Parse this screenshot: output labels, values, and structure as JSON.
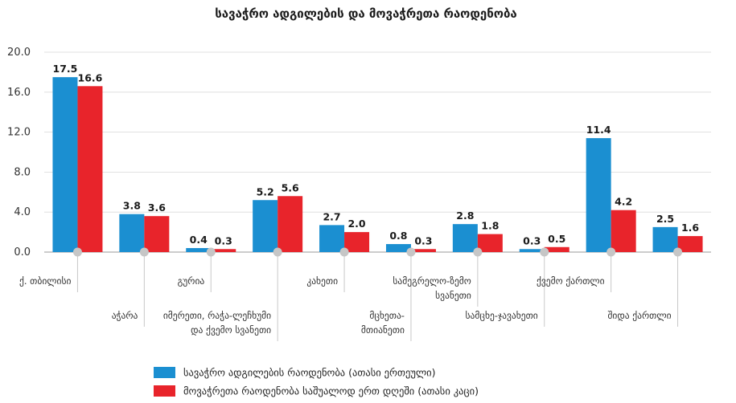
{
  "chart_data": {
    "type": "bar",
    "title": "სავაჭრო ადგილების და მოვაჭრეთა რაოდენობა",
    "ylim": [
      0,
      20
    ],
    "yticks": [
      "0.0",
      "4.0",
      "8.0",
      "12.0",
      "16.0",
      "20.0"
    ],
    "grid": true,
    "legend_position": "bottom",
    "categories": [
      [
        "ქ. თბილისი"
      ],
      [
        "აჭარა"
      ],
      [
        "გურია"
      ],
      [
        "იმერეთი, რაჭა-ლეჩხუმი",
        "და ქვემო სვანეთი"
      ],
      [
        "კახეთი"
      ],
      [
        "მცხეთა-",
        "მთიანეთი"
      ],
      [
        "სამეგრელო-ზემო",
        "სვანეთი"
      ],
      [
        "სამცხე-ჯავახეთი"
      ],
      [
        "ქვემო ქართლი"
      ],
      [
        "შიდა ქართლი"
      ]
    ],
    "series": [
      {
        "name": "სავაჭრო ადგილების რაოდენობა (ათასი ერთეული)",
        "color": "#1b8fd1",
        "values": [
          17.5,
          3.8,
          0.4,
          5.2,
          2.7,
          0.8,
          2.8,
          0.3,
          11.4,
          2.5
        ],
        "labels": [
          "17.5",
          "3.8",
          "0.4",
          "5.2",
          "2.7",
          "0.8",
          "2.8",
          "0.3",
          "11.4",
          "2.5"
        ]
      },
      {
        "name": "მოვაჭრეთა რაოდენობა საშუალოდ ერთ დღეში (ათასი კაცი)",
        "color": "#e8242b",
        "values": [
          16.6,
          3.6,
          0.3,
          5.6,
          2.0,
          0.3,
          1.8,
          0.5,
          4.2,
          1.6
        ],
        "labels": [
          "16.6",
          "3.6",
          "0.3",
          "5.6",
          "2.0",
          "0.3",
          "1.8",
          "0.5",
          "4.2",
          "1.6"
        ]
      }
    ]
  }
}
